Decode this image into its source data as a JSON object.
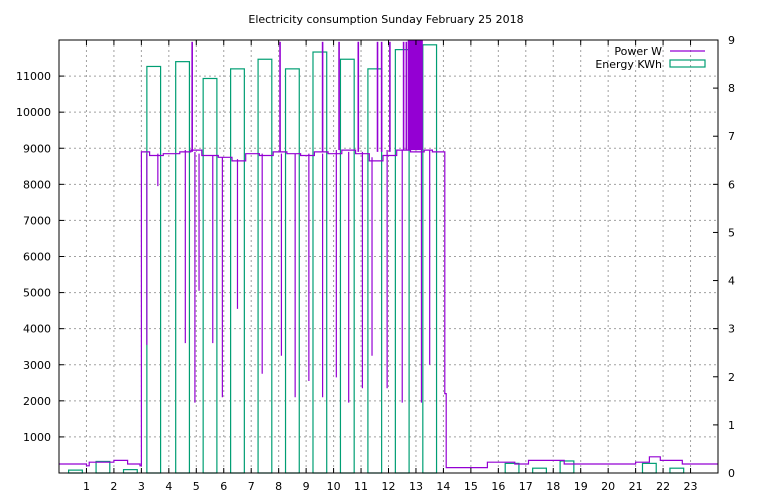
{
  "chart_data": {
    "type": "bar+line",
    "title": "Electricity consumption Sunday February 25 2018",
    "xlabel": "",
    "ylabel": "",
    "y2label": "",
    "x_ticks": [
      1,
      2,
      3,
      4,
      5,
      6,
      7,
      8,
      9,
      10,
      11,
      12,
      13,
      14,
      15,
      16,
      17,
      18,
      19,
      20,
      21,
      22,
      23
    ],
    "xlim": [
      0,
      24
    ],
    "ylim": [
      0,
      12000
    ],
    "y_ticks": [
      1000,
      2000,
      3000,
      4000,
      5000,
      6000,
      7000,
      8000,
      9000,
      10000,
      11000
    ],
    "y2lim": [
      0,
      9
    ],
    "y2_ticks": [
      0,
      1,
      2,
      3,
      4,
      5,
      6,
      7,
      8,
      9
    ],
    "grid": true,
    "legend_position": "top-right",
    "colors": {
      "power": "#9400d3",
      "energy": "#009e73"
    },
    "series": [
      {
        "name": "Energy KWh",
        "kind": "boxes",
        "axis": "y2",
        "points": [
          [
            0.1,
            0.06
          ],
          [
            1.1,
            0.24
          ],
          [
            2.1,
            0.07
          ],
          [
            2.95,
            8.45
          ],
          [
            4.0,
            8.55
          ],
          [
            5.0,
            8.2
          ],
          [
            6.0,
            8.4
          ],
          [
            7.0,
            8.6
          ],
          [
            8.0,
            8.4
          ],
          [
            9.0,
            8.75
          ],
          [
            10.0,
            8.6
          ],
          [
            11.0,
            8.4
          ],
          [
            12.0,
            8.8
          ],
          [
            13.0,
            8.9
          ],
          [
            16.0,
            0.2
          ],
          [
            17.0,
            0.1
          ],
          [
            18.0,
            0.25
          ],
          [
            21.0,
            0.2
          ],
          [
            22.0,
            0.1
          ]
        ]
      },
      {
        "name": "Power W",
        "kind": "line",
        "axis": "y1",
        "baseline": [
          [
            0,
            250
          ],
          [
            0.8,
            250
          ],
          [
            1.0,
            200
          ],
          [
            1.1,
            300
          ],
          [
            1.9,
            300
          ],
          [
            2.0,
            350
          ],
          [
            2.4,
            350
          ],
          [
            2.5,
            250
          ],
          [
            2.9,
            250
          ],
          [
            2.95,
            200
          ],
          [
            3.0,
            8900
          ],
          [
            3.3,
            8800
          ],
          [
            3.8,
            8850
          ],
          [
            4.4,
            8900
          ],
          [
            4.8,
            8950
          ],
          [
            5.2,
            8800
          ],
          [
            5.8,
            8750
          ],
          [
            6.3,
            8650
          ],
          [
            6.8,
            8850
          ],
          [
            7.3,
            8800
          ],
          [
            7.8,
            8900
          ],
          [
            8.3,
            8850
          ],
          [
            8.8,
            8800
          ],
          [
            9.3,
            8900
          ],
          [
            9.8,
            8850
          ],
          [
            10.3,
            8950
          ],
          [
            10.8,
            8850
          ],
          [
            11.3,
            8650
          ],
          [
            11.8,
            8800
          ],
          [
            12.3,
            8950
          ],
          [
            12.8,
            8900
          ],
          [
            13.3,
            8950
          ],
          [
            13.6,
            8900
          ],
          [
            13.9,
            8900
          ],
          [
            14.0,
            8900
          ],
          [
            14.05,
            2200
          ],
          [
            14.1,
            150
          ],
          [
            15.0,
            150
          ],
          [
            15.5,
            150
          ],
          [
            15.6,
            300
          ],
          [
            16.5,
            300
          ],
          [
            16.6,
            250
          ],
          [
            17.0,
            250
          ],
          [
            17.1,
            350
          ],
          [
            18.0,
            350
          ],
          [
            18.3,
            350
          ],
          [
            18.4,
            250
          ],
          [
            20.9,
            250
          ],
          [
            21.0,
            300
          ],
          [
            21.4,
            300
          ],
          [
            21.5,
            450
          ],
          [
            21.8,
            450
          ],
          [
            21.9,
            350
          ],
          [
            22.6,
            350
          ],
          [
            22.7,
            250
          ],
          [
            24.0,
            250
          ]
        ],
        "dips": [
          [
            3.2,
            8850,
            3550
          ],
          [
            3.6,
            8850,
            7950
          ],
          [
            4.6,
            8950,
            3600
          ],
          [
            4.95,
            8900,
            1950
          ],
          [
            5.1,
            8850,
            5050
          ],
          [
            5.6,
            8800,
            3600
          ],
          [
            5.95,
            8750,
            2100
          ],
          [
            6.5,
            8700,
            4550
          ],
          [
            7.4,
            8850,
            2750
          ],
          [
            8.1,
            8850,
            3250
          ],
          [
            8.6,
            8850,
            2100
          ],
          [
            9.1,
            8850,
            2550
          ],
          [
            9.6,
            8850,
            2100
          ],
          [
            10.1,
            8950,
            2650
          ],
          [
            10.55,
            8900,
            1950
          ],
          [
            11.05,
            8900,
            2350
          ],
          [
            11.4,
            8750,
            3250
          ],
          [
            11.95,
            8950,
            2350
          ],
          [
            12.5,
            8950,
            1950
          ],
          [
            13.2,
            8950,
            1950
          ],
          [
            13.5,
            8950,
            3000
          ]
        ],
        "spikes": [
          [
            4.85,
            8900,
            11950
          ],
          [
            8.05,
            8900,
            11950
          ],
          [
            9.6,
            8900,
            11950
          ],
          [
            10.2,
            8950,
            11950
          ],
          [
            10.9,
            8900,
            11950
          ],
          [
            11.6,
            8900,
            11950
          ],
          [
            11.75,
            8900,
            11950
          ],
          [
            12.05,
            8900,
            11950
          ],
          [
            12.55,
            8950,
            11950
          ],
          [
            12.65,
            8950,
            11950
          ],
          [
            12.85,
            8950,
            11950
          ],
          [
            12.95,
            8950,
            11950
          ],
          [
            13.05,
            8950,
            11950
          ],
          [
            13.15,
            8950,
            11950
          ]
        ],
        "fills": [
          [
            12.7,
            13.25
          ]
        ]
      }
    ]
  }
}
